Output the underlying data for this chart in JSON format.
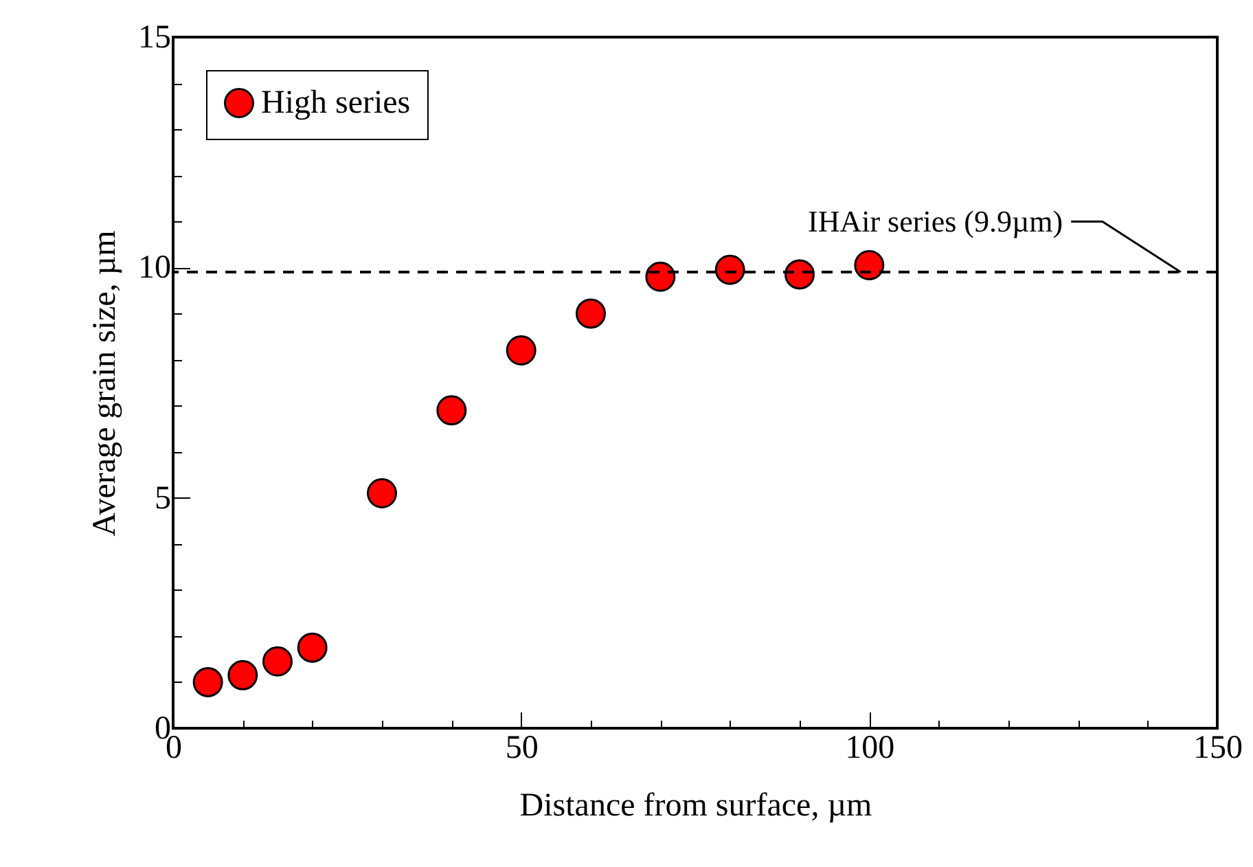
{
  "chart_data": {
    "type": "scatter",
    "xlabel": "Distance from surface, µm",
    "ylabel": "Average grain size, µm",
    "x": [
      5,
      10,
      15,
      20,
      30,
      40,
      50,
      60,
      70,
      80,
      90,
      100
    ],
    "series": [
      {
        "name": "High series",
        "color": "#ff0000",
        "values": [
          1.0,
          1.15,
          1.45,
          1.75,
          5.1,
          6.9,
          8.2,
          9.0,
          9.8,
          9.95,
          9.85,
          10.05
        ]
      }
    ],
    "xlim": [
      0,
      150
    ],
    "ylim": [
      0,
      15
    ],
    "xticks": [
      0,
      {
        "value": 10,
        "label": null
      },
      {
        "value": 20,
        "label": null
      },
      {
        "value": 30,
        "label": null
      },
      {
        "value": 40,
        "label": null
      },
      50,
      {
        "value": 60,
        "label": null
      },
      {
        "value": 70,
        "label": null
      },
      {
        "value": 80,
        "label": null
      },
      {
        "value": 90,
        "label": null
      },
      100,
      {
        "value": 110,
        "label": null
      },
      {
        "value": 120,
        "label": null
      },
      {
        "value": 130,
        "label": null
      },
      {
        "value": 140,
        "label": null
      },
      150
    ],
    "yticks": [
      0,
      {
        "value": 1,
        "label": null
      },
      {
        "value": 2,
        "label": null
      },
      {
        "value": 3,
        "label": null
      },
      {
        "value": 4,
        "label": null
      },
      5,
      {
        "value": 6,
        "label": null
      },
      {
        "value": 7,
        "label": null
      },
      {
        "value": 8,
        "label": null
      },
      {
        "value": 9,
        "label": null
      },
      10,
      {
        "value": 11,
        "label": null
      },
      {
        "value": 12,
        "label": null
      },
      {
        "value": 13,
        "label": null
      },
      {
        "value": 14,
        "label": null
      },
      15
    ],
    "ref_lines": [
      {
        "axis": "y",
        "value": 9.9,
        "label": "IHAir series (9.9µm)",
        "line_style": "dashed",
        "color": "#000000"
      }
    ],
    "marker": "circle",
    "legend": "top left",
    "grid": false
  }
}
